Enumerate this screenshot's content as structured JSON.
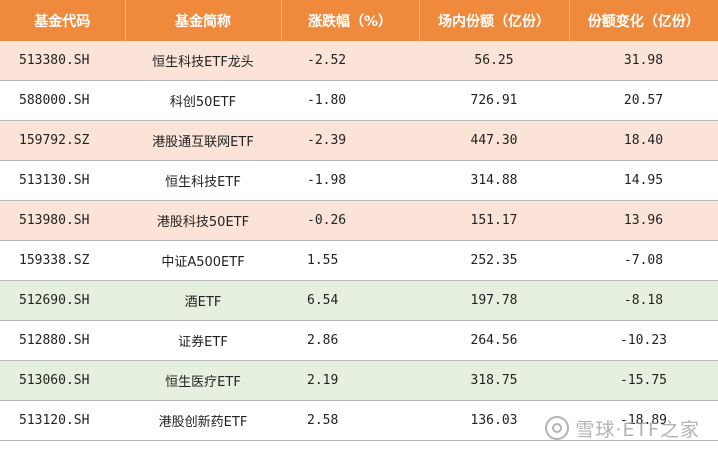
{
  "table": {
    "headers": [
      "基金代码",
      "基金简称",
      "涨跌幅（%）",
      "场内份额（亿份）",
      "份额变化（亿份）"
    ],
    "rows": [
      {
        "code": "513380.SH",
        "name": "恒生科技ETF龙头",
        "change": "-2.52",
        "volume": "56.25",
        "delta": "31.98",
        "tone": "pink"
      },
      {
        "code": "588000.SH",
        "name": "科创50ETF",
        "change": "-1.80",
        "volume": "726.91",
        "delta": "20.57",
        "tone": "white"
      },
      {
        "code": "159792.SZ",
        "name": "港股通互联网ETF",
        "change": "-2.39",
        "volume": "447.30",
        "delta": "18.40",
        "tone": "pink"
      },
      {
        "code": "513130.SH",
        "name": "恒生科技ETF",
        "change": "-1.98",
        "volume": "314.88",
        "delta": "14.95",
        "tone": "white"
      },
      {
        "code": "513980.SH",
        "name": "港股科技50ETF",
        "change": "-0.26",
        "volume": "151.17",
        "delta": "13.96",
        "tone": "pink"
      },
      {
        "code": "159338.SZ",
        "name": "中证A500ETF",
        "change": "1.55",
        "volume": "252.35",
        "delta": "-7.08",
        "tone": "white"
      },
      {
        "code": "512690.SH",
        "name": "酒ETF",
        "change": "6.54",
        "volume": "197.78",
        "delta": "-8.18",
        "tone": "green"
      },
      {
        "code": "512880.SH",
        "name": "证券ETF",
        "change": "2.86",
        "volume": "264.56",
        "delta": "-10.23",
        "tone": "white"
      },
      {
        "code": "513060.SH",
        "name": "恒生医疗ETF",
        "change": "2.19",
        "volume": "318.75",
        "delta": "-15.75",
        "tone": "green"
      },
      {
        "code": "513120.SH",
        "name": "港股创新药ETF",
        "change": "2.58",
        "volume": "136.03",
        "delta": "-18.89",
        "tone": "white"
      }
    ]
  },
  "colors": {
    "header_bg": "#ef8a3c",
    "row_pink": "#fbe3d7",
    "row_green": "#e6f0df",
    "row_white": "#ffffff"
  },
  "watermark": {
    "text": "雪球·ETF之家",
    "icon": "xueqiu-logo-icon"
  }
}
